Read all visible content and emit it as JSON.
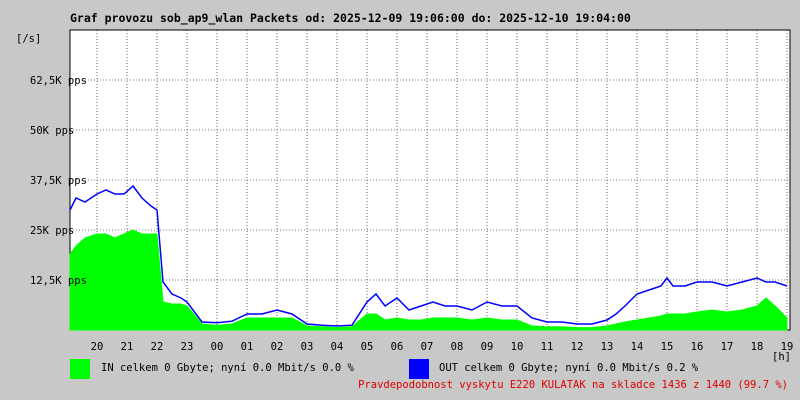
{
  "header": {
    "title": "Graf provozu sob_ap9_wlan Packets od: 2025-12-09 19:06:00 do: 2025-12-10 19:04:00"
  },
  "legend": {
    "in": {
      "label": "IN celkem 0 Gbyte; nyní   0.0 Mbit/s 0.0 %",
      "color": "#00ff00"
    },
    "out": {
      "label": "OUT celkem 0 Gbyte; nyní   0.0 Mbit/s 0.2 %",
      "color": "#0000ff"
    }
  },
  "footer": {
    "availability": "Pravdepodobnost vyskytu E220 KULATAK na skladce 1436 z 1440 (99.7 %)"
  },
  "chart_data": {
    "type": "area",
    "ylabel": "[/s]",
    "xlabel": "[h]",
    "yunit": "pps",
    "ylim": [
      0,
      75000
    ],
    "xlim": [
      19.1,
      43.1
    ],
    "grid": true,
    "ytick_labels": [
      {
        "value": 12500,
        "label": "12,5K pps"
      },
      {
        "value": 25000,
        "label": "25K pps"
      },
      {
        "value": 37500,
        "label": "37,5K pps"
      },
      {
        "value": 50000,
        "label": "50K pps"
      },
      {
        "value": 62500,
        "label": "62,5K pps"
      }
    ],
    "xtick_labels": [
      {
        "value": 20,
        "label": "20"
      },
      {
        "value": 21,
        "label": "21"
      },
      {
        "value": 22,
        "label": "22"
      },
      {
        "value": 23,
        "label": "23"
      },
      {
        "value": 24,
        "label": "00"
      },
      {
        "value": 25,
        "label": "01"
      },
      {
        "value": 26,
        "label": "02"
      },
      {
        "value": 27,
        "label": "03"
      },
      {
        "value": 28,
        "label": "04"
      },
      {
        "value": 29,
        "label": "05"
      },
      {
        "value": 30,
        "label": "06"
      },
      {
        "value": 31,
        "label": "07"
      },
      {
        "value": 32,
        "label": "08"
      },
      {
        "value": 33,
        "label": "09"
      },
      {
        "value": 34,
        "label": "10"
      },
      {
        "value": 35,
        "label": "11"
      },
      {
        "value": 36,
        "label": "12"
      },
      {
        "value": 37,
        "label": "13"
      },
      {
        "value": 38,
        "label": "14"
      },
      {
        "value": 39,
        "label": "15"
      },
      {
        "value": 40,
        "label": "16"
      },
      {
        "value": 41,
        "label": "17"
      },
      {
        "value": 42,
        "label": "18"
      },
      {
        "value": 43,
        "label": "19"
      }
    ],
    "series": [
      {
        "name": "OUT",
        "color": "#0000ff",
        "style": "line",
        "x": [
          19.1,
          19.3,
          19.6,
          20.0,
          20.3,
          20.6,
          20.9,
          21.2,
          21.5,
          21.8,
          22.0,
          22.2,
          22.5,
          22.8,
          23.0,
          23.5,
          24.0,
          24.5,
          25.0,
          25.5,
          26.0,
          26.5,
          27.0,
          27.5,
          28.0,
          28.5,
          29.0,
          29.3,
          29.6,
          30.0,
          30.4,
          30.8,
          31.2,
          31.6,
          32.0,
          32.5,
          33.0,
          33.5,
          34.0,
          34.5,
          35.0,
          35.5,
          36.0,
          36.5,
          37.0,
          37.3,
          37.6,
          38.0,
          38.4,
          38.8,
          39.0,
          39.2,
          39.6,
          40.0,
          40.5,
          41.0,
          41.5,
          42.0,
          42.3,
          42.6,
          43.0
        ],
        "y": [
          30000,
          33000,
          32000,
          34000,
          35000,
          34000,
          34000,
          36000,
          33000,
          31000,
          30000,
          12000,
          9000,
          8000,
          7000,
          2000,
          1800,
          2200,
          4000,
          4000,
          5000,
          4000,
          1500,
          1200,
          1000,
          1200,
          7000,
          9000,
          6000,
          8000,
          5000,
          6000,
          7000,
          6000,
          6000,
          5000,
          7000,
          6000,
          6000,
          3000,
          2000,
          2000,
          1500,
          1500,
          2500,
          4000,
          6000,
          9000,
          10000,
          11000,
          13000,
          11000,
          11000,
          12000,
          12000,
          11000,
          12000,
          13000,
          12000,
          12000,
          11000
        ]
      },
      {
        "name": "IN",
        "color": "#00ff00",
        "style": "area",
        "x": [
          19.1,
          19.3,
          19.6,
          20.0,
          20.3,
          20.6,
          20.9,
          21.2,
          21.5,
          21.8,
          22.0,
          22.2,
          22.5,
          22.8,
          23.0,
          23.5,
          24.0,
          24.5,
          25.0,
          25.5,
          26.0,
          26.5,
          27.0,
          27.5,
          28.0,
          28.5,
          29.0,
          29.3,
          29.6,
          30.0,
          30.4,
          30.8,
          31.2,
          31.6,
          32.0,
          32.5,
          33.0,
          33.5,
          34.0,
          34.5,
          35.0,
          35.5,
          36.0,
          36.5,
          37.0,
          37.3,
          37.6,
          38.0,
          38.4,
          38.8,
          39.0,
          39.2,
          39.6,
          40.0,
          40.5,
          41.0,
          41.5,
          42.0,
          42.3,
          42.6,
          43.0
        ],
        "y": [
          19000,
          21000,
          23000,
          24000,
          24000,
          23000,
          24000,
          25000,
          24000,
          24000,
          24000,
          7000,
          6500,
          6500,
          6000,
          1500,
          1200,
          1500,
          3000,
          3000,
          3000,
          3000,
          1000,
          800,
          600,
          800,
          4000,
          4000,
          2500,
          3000,
          2500,
          2500,
          3000,
          3000,
          3000,
          2500,
          3000,
          2500,
          2500,
          1000,
          800,
          800,
          600,
          600,
          1000,
          1500,
          2000,
          2500,
          3000,
          3500,
          4000,
          4000,
          4000,
          4500,
          5000,
          4500,
          5000,
          6000,
          8000,
          6000,
          3000
        ]
      }
    ]
  }
}
